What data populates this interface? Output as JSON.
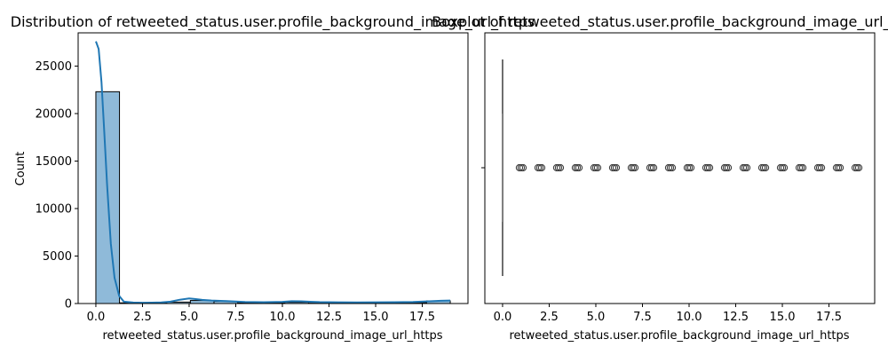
{
  "chart_data": [
    {
      "type": "histogram",
      "title": "Distribution of retweeted_status.user.profile_background_image_url_https",
      "xlabel": "retweeted_status.user.profile_background_image_url_https",
      "ylabel": "Count",
      "xlim": [
        -0.95,
        19.95
      ],
      "ylim": [
        0,
        28500
      ],
      "xticks": [
        "0.0",
        "2.5",
        "5.0",
        "7.5",
        "10.0",
        "12.5",
        "15.0",
        "17.5"
      ],
      "xtick_values": [
        0,
        2.5,
        5,
        7.5,
        10,
        12.5,
        15,
        17.5
      ],
      "yticks": [
        "0",
        "5000",
        "10000",
        "15000",
        "20000",
        "25000"
      ],
      "ytick_values": [
        0,
        5000,
        10000,
        15000,
        20000,
        25000
      ],
      "bins": [
        {
          "x0": 0.0,
          "x1": 1.2667,
          "count": 22300
        },
        {
          "x0": 1.2667,
          "x1": 2.5333,
          "count": 70
        },
        {
          "x0": 2.5333,
          "x1": 3.8,
          "count": 70
        },
        {
          "x0": 3.8,
          "x1": 5.0667,
          "count": 150
        },
        {
          "x0": 5.0667,
          "x1": 6.3333,
          "count": 320
        },
        {
          "x0": 6.3333,
          "x1": 7.6,
          "count": 230
        },
        {
          "x0": 7.6,
          "x1": 8.8667,
          "count": 90
        },
        {
          "x0": 8.8667,
          "x1": 10.1333,
          "count": 90
        },
        {
          "x0": 10.1333,
          "x1": 11.4,
          "count": 130
        },
        {
          "x0": 11.4,
          "x1": 12.6667,
          "count": 110
        },
        {
          "x0": 12.6667,
          "x1": 13.9333,
          "count": 80
        },
        {
          "x0": 13.9333,
          "x1": 15.2,
          "count": 80
        },
        {
          "x0": 15.2,
          "x1": 16.4667,
          "count": 90
        },
        {
          "x0": 16.4667,
          "x1": 17.7333,
          "count": 100
        },
        {
          "x0": 17.7333,
          "x1": 19.0,
          "count": 280
        }
      ],
      "kde": {
        "x": [
          0,
          0.15,
          0.3,
          0.45,
          0.6,
          0.8,
          1.0,
          1.25,
          1.5,
          2.0,
          2.5,
          3.0,
          3.5,
          4.0,
          4.5,
          5.0,
          5.3,
          5.7,
          6.2,
          7.0,
          8.0,
          9.0,
          10.0,
          10.5,
          11.0,
          11.5,
          12.0,
          13.0,
          14.0,
          15.0,
          16.0,
          17.0,
          18.0,
          18.5,
          19.0
        ],
        "y": [
          27600,
          26800,
          23300,
          18100,
          12500,
          6300,
          2700,
          800,
          200,
          100,
          80,
          90,
          120,
          200,
          400,
          540,
          480,
          380,
          320,
          260,
          160,
          140,
          180,
          240,
          230,
          190,
          150,
          130,
          120,
          130,
          140,
          170,
          240,
          290,
          320
        ]
      },
      "colors": {
        "bar_fill": "#8fbad9",
        "bar_edge": "#000000",
        "kde_line": "#1f77b4"
      }
    },
    {
      "type": "boxplot",
      "orientation": "horizontal",
      "title": "Boxplot of retweeted_status.user.profile_background_image_url_https",
      "xlabel": "retweeted_status.user.profile_background_image_url_https",
      "xlim": [
        -0.95,
        19.95
      ],
      "xticks": [
        "0.0",
        "2.5",
        "5.0",
        "7.5",
        "10.0",
        "12.5",
        "15.0",
        "17.5"
      ],
      "xtick_values": [
        0,
        2.5,
        5,
        7.5,
        10,
        12.5,
        15,
        17.5
      ],
      "box": {
        "min": 0,
        "q1": 0,
        "median": 0,
        "q3": 0,
        "max": 0
      },
      "outliers": [
        1,
        2,
        3,
        4,
        5,
        6,
        7,
        8,
        9,
        10,
        11,
        12,
        13,
        14,
        15,
        16,
        17,
        18,
        19
      ],
      "colors": {
        "line": "#3f3f3f"
      }
    }
  ]
}
